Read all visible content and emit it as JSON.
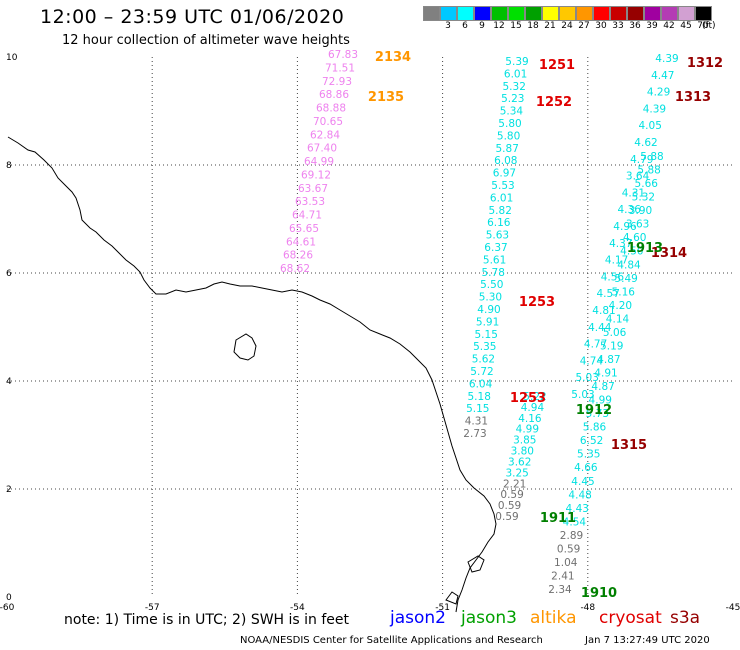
{
  "header": {
    "title": "12:00 – 23:59 UTC 01/06/2020",
    "subtitle": "12 hour collection of altimeter wave heights"
  },
  "scale": {
    "unit": "(ft)",
    "bins": [
      {
        "label": "",
        "color": "#808080"
      },
      {
        "label": "3",
        "color": "#00c8ff"
      },
      {
        "label": "6",
        "color": "#00ffff"
      },
      {
        "label": "9",
        "color": "#0000ff"
      },
      {
        "label": "12",
        "color": "#00c000"
      },
      {
        "label": "15",
        "color": "#00e000"
      },
      {
        "label": "18",
        "color": "#00a000"
      },
      {
        "label": "21",
        "color": "#ffff00"
      },
      {
        "label": "24",
        "color": "#ffc800"
      },
      {
        "label": "27",
        "color": "#ff9600"
      },
      {
        "label": "30",
        "color": "#ff0000"
      },
      {
        "label": "33",
        "color": "#c80000"
      },
      {
        "label": "36",
        "color": "#960000"
      },
      {
        "label": "39",
        "color": "#a000a0"
      },
      {
        "label": "42",
        "color": "#b43cb4"
      },
      {
        "label": "45",
        "color": "#d2a0d2"
      },
      {
        "label": "70",
        "color": "#000000"
      }
    ]
  },
  "axes": {
    "x_ticks": [
      "-60",
      "-57",
      "-54",
      "-51",
      "-48",
      "-45"
    ],
    "y_ticks": [
      "0",
      "2",
      "4",
      "6",
      "8",
      "10"
    ]
  },
  "tracks": [
    {
      "color": "#ee82ee",
      "values": [
        "67.83",
        "71.51",
        "72.93",
        "68.86",
        "68.88",
        "70.65",
        "62.84",
        "67.40",
        "64.99",
        "69.12",
        "63.67",
        "63.53",
        "64.71",
        "65.65",
        "64.61",
        "68.26",
        "68.62"
      ]
    },
    {
      "color": "#00e0e0",
      "values": [
        "5.39",
        "6.01",
        "5.32",
        "5.23",
        "5.34",
        "5.80",
        "5.80",
        "5.87",
        "6.08",
        "6.97",
        "5.53",
        "6.01",
        "5.82",
        "6.16",
        "5.63",
        "6.37",
        "5.61",
        "5.78",
        "5.50",
        "5.30",
        "4.90",
        "5.91",
        "5.15",
        "5.35",
        "5.62",
        "5.72",
        "6.04",
        "5.18",
        "5.15",
        "4.31",
        "2.73"
      ]
    },
    {
      "color": "#00e0e0",
      "values": [
        "5.22",
        "4.94",
        "4.16",
        "4.99",
        "3.85",
        "3.80",
        "3.62",
        "3.25",
        "2.21",
        "0.59",
        "0.59",
        "0.59"
      ]
    },
    {
      "color": "#00e0e0",
      "values": [
        "4.39",
        "4.47",
        "4.29",
        "4.39",
        "4.05",
        "4.62",
        "4.79",
        "3.64",
        "4.31",
        "4.36",
        "4.96",
        "4.37",
        "4.17",
        "4.56",
        "4.57",
        "4.81",
        "4.44",
        "4.77",
        "4.74",
        "5.03",
        "5.03"
      ]
    },
    {
      "color": "#00e0e0",
      "values": [
        "5.88",
        "5.88",
        "5.66",
        "5.32",
        "3.90",
        "3.63",
        "4.60",
        "4.50",
        "4.84",
        "5.49",
        "5.16",
        "4.20",
        "4.14",
        "5.06",
        "5.19",
        "4.87",
        "4.91",
        "4.87",
        "4.99",
        "5.73",
        "5.86",
        "6.52",
        "5.35",
        "4.66",
        "4.45",
        "4.48",
        "4.43",
        "4.54",
        "2.89",
        "0.59",
        "1.04",
        "2.41",
        "2.34"
      ]
    }
  ],
  "grey_values": [
    "4.31",
    "2.73",
    "2.21",
    "0.59",
    "0.59",
    "0.59",
    "2.89",
    "0.59",
    "1.04",
    "2.41",
    "2.34"
  ],
  "pass_labels": [
    {
      "text": "2134",
      "color": "#ff9600"
    },
    {
      "text": "2135",
      "color": "#ff9600"
    },
    {
      "text": "1251",
      "color": "#e00000"
    },
    {
      "text": "1252",
      "color": "#e00000"
    },
    {
      "text": "1253",
      "color": "#e00000"
    },
    {
      "text": "1253",
      "color": "#e00000"
    },
    {
      "text": "1312",
      "color": "#960000"
    },
    {
      "text": "1313",
      "color": "#960000"
    },
    {
      "text": "1314",
      "color": "#960000"
    },
    {
      "text": "1315",
      "color": "#960000"
    },
    {
      "text": "1913",
      "color": "#008000"
    },
    {
      "text": "1912",
      "color": "#008000"
    },
    {
      "text": "1911",
      "color": "#008000"
    },
    {
      "text": "1910",
      "color": "#008000"
    }
  ],
  "footer": {
    "note": "note: 1) Time is in UTC; 2) SWH is in feet",
    "satellites": [
      {
        "name": "jason2",
        "color": "#0000ff"
      },
      {
        "name": "jason3",
        "color": "#00a000"
      },
      {
        "name": "altika",
        "color": "#ff9600"
      },
      {
        "name": "cryosat",
        "color": "#e00000"
      },
      {
        "name": "s3a",
        "color": "#960000"
      }
    ],
    "credit": "NOAA/NESDIS Center for Satellite Applications and Research",
    "timestamp": "Jan  7 13:27:49 UTC 2020"
  }
}
